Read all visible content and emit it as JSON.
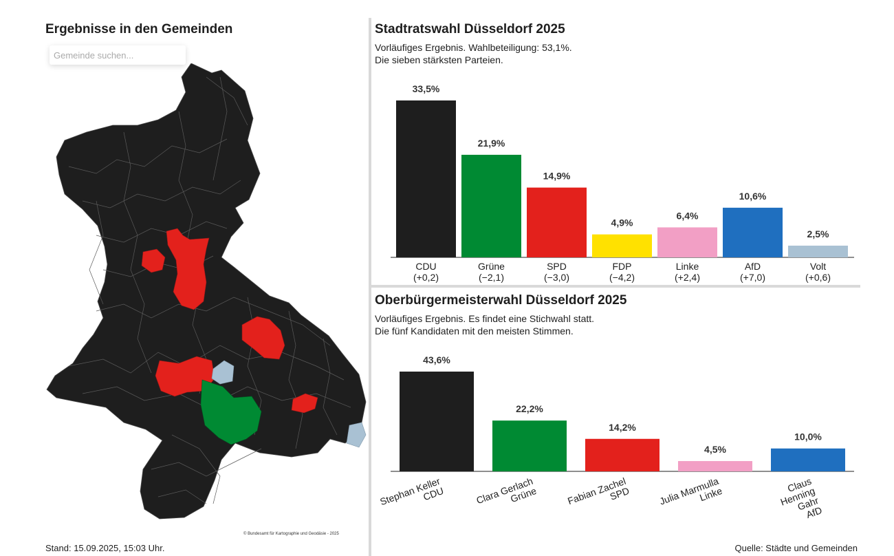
{
  "map_panel": {
    "title": "Ergebnisse in den Gemeinden",
    "search_placeholder": "Gemeinde suchen...",
    "copyright": "© Bundesamt für Kartographie und Geodäsie - 2025",
    "colors": {
      "cdu": "#1e1e1e",
      "spd": "#e3211c",
      "gruene": "#008a33",
      "volt": "#a9c1d3"
    }
  },
  "footer": {
    "stand": "Stand: 15.09.2025, 15:03 Uhr.",
    "quelle": "Quelle: Städte und Gemeinden"
  },
  "chart_data": [
    {
      "type": "bar",
      "title": "Stadtratswahl Düsseldorf 2025",
      "subtitle_line1": "Vorläufiges Ergebnis. Wahlbeteiligung: 53,1%.",
      "subtitle_line2": "Die sieben stärksten Parteien.",
      "categories": [
        "CDU",
        "Grüne",
        "SPD",
        "FDP",
        "Linke",
        "AfD",
        "Volt"
      ],
      "changes": [
        "(+0,2)",
        "(−2,1)",
        "(−3,0)",
        "(−4,2)",
        "(+2,4)",
        "(+7,0)",
        "(+0,6)"
      ],
      "values": [
        33.5,
        21.9,
        14.9,
        4.9,
        6.4,
        10.6,
        2.5
      ],
      "labels": [
        "33,5%",
        "21,9%",
        "14,9%",
        "4,9%",
        "6,4%",
        "10,6%",
        "2,5%"
      ],
      "colors": [
        "#1e1e1e",
        "#008a33",
        "#e3211c",
        "#ffe100",
        "#f29fc5",
        "#1f6fbf",
        "#a9c1d3"
      ],
      "ylim": [
        0,
        33.5
      ]
    },
    {
      "type": "bar",
      "title": "Oberbürgermeisterwahl Düsseldorf 2025",
      "subtitle_line1": "Vorläufiges Ergebnis. Es findet eine Stichwahl statt.",
      "subtitle_line2": "Die fünf Kandidaten mit den meisten Stimmen.",
      "categories": [
        [
          "Stephan Keller",
          "CDU"
        ],
        [
          "Clara Gerlach",
          "Grüne"
        ],
        [
          "Fabian Zachel",
          "SPD"
        ],
        [
          "Julia Marmulla",
          "Linke"
        ],
        [
          "Claus",
          "Henning",
          "Gahr",
          "AfD"
        ]
      ],
      "values": [
        43.6,
        22.2,
        14.2,
        4.5,
        10.0
      ],
      "labels": [
        "43,6%",
        "22,2%",
        "14,2%",
        "4,5%",
        "10,0%"
      ],
      "colors": [
        "#1e1e1e",
        "#008a33",
        "#e3211c",
        "#f29fc5",
        "#1f6fbf"
      ],
      "ylim": [
        0,
        43.6
      ]
    }
  ]
}
